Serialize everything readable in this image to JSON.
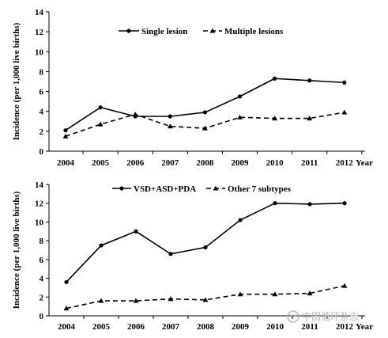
{
  "chart_data": [
    {
      "type": "line",
      "ylabel": "Incidence (per 1,000 live births)",
      "xlabel": "Year",
      "categories": [
        "2004",
        "2005",
        "2006",
        "2007",
        "2008",
        "2009",
        "2010",
        "2011",
        "2012"
      ],
      "ylim": [
        0,
        14
      ],
      "yticks": [
        0,
        2,
        4,
        6,
        8,
        10,
        12,
        14
      ],
      "legend_position": "top-right",
      "series": [
        {
          "name": "Single lesion",
          "style": "solid",
          "marker": "circle",
          "values": [
            2.1,
            4.4,
            3.5,
            3.5,
            3.9,
            5.5,
            7.3,
            7.1,
            6.9
          ]
        },
        {
          "name": "Multiple lesions",
          "style": "dashed",
          "marker": "triangle",
          "values": [
            1.5,
            2.7,
            3.7,
            2.5,
            2.3,
            3.4,
            3.3,
            3.3,
            3.9
          ]
        }
      ]
    },
    {
      "type": "line",
      "ylabel": "Incidence (per 1,000 live births)",
      "xlabel": "Year",
      "categories": [
        "2004",
        "2005",
        "2006",
        "2007",
        "2008",
        "2009",
        "2010",
        "2011",
        "2012"
      ],
      "ylim": [
        0,
        14
      ],
      "yticks": [
        0,
        2,
        4,
        6,
        8,
        10,
        12,
        14
      ],
      "legend_position": "top-center",
      "series": [
        {
          "name": "VSD+ASD+PDA",
          "style": "solid",
          "marker": "circle",
          "values": [
            3.6,
            7.5,
            9.0,
            6.6,
            7.3,
            10.2,
            12.0,
            11.9,
            12.0
          ]
        },
        {
          "name": "Other 7 subtypes",
          "style": "dashed",
          "marker": "triangle",
          "values": [
            0.8,
            1.6,
            1.6,
            1.8,
            1.7,
            2.3,
            2.3,
            2.4,
            3.2
          ]
        }
      ]
    }
  ],
  "watermark": "中国循环杂志",
  "colors": {
    "line": "#000000",
    "watermark": "#b9b9b9"
  }
}
